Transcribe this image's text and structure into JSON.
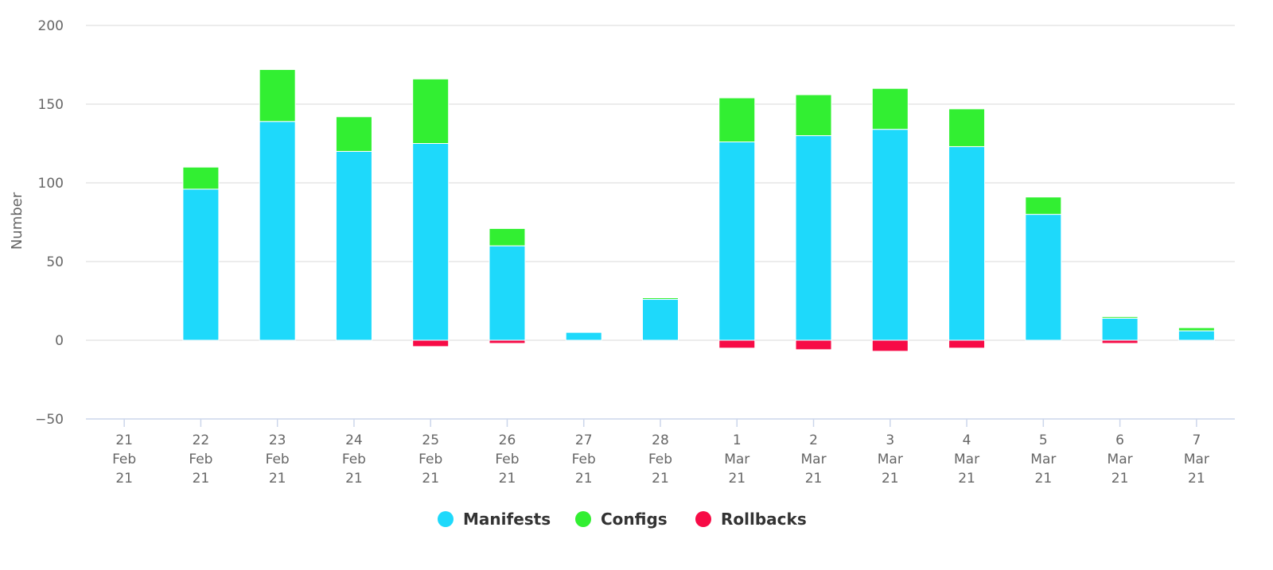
{
  "chart_data": {
    "type": "bar",
    "stacked": true,
    "ylabel": "Number",
    "ylim": [
      -50,
      200
    ],
    "yticks": [
      -50,
      0,
      50,
      100,
      150,
      200
    ],
    "grid": true,
    "legend_position": "bottom-center",
    "categories": [
      [
        "21",
        "Feb",
        "21"
      ],
      [
        "22",
        "Feb",
        "21"
      ],
      [
        "23",
        "Feb",
        "21"
      ],
      [
        "24",
        "Feb",
        "21"
      ],
      [
        "25",
        "Feb",
        "21"
      ],
      [
        "26",
        "Feb",
        "21"
      ],
      [
        "27",
        "Feb",
        "21"
      ],
      [
        "28",
        "Feb",
        "21"
      ],
      [
        "1",
        "Mar",
        "21"
      ],
      [
        "2",
        "Mar",
        "21"
      ],
      [
        "3",
        "Mar",
        "21"
      ],
      [
        "4",
        "Mar",
        "21"
      ],
      [
        "5",
        "Mar",
        "21"
      ],
      [
        "6",
        "Mar",
        "21"
      ],
      [
        "7",
        "Mar",
        "21"
      ]
    ],
    "series": [
      {
        "name": "Manifests",
        "color": "#1ed9fb",
        "values": [
          0,
          96,
          139,
          120,
          125,
          60,
          5,
          26,
          126,
          130,
          134,
          123,
          80,
          14,
          6
        ]
      },
      {
        "name": "Configs",
        "color": "#32ef32",
        "values": [
          0,
          14,
          33,
          22,
          41,
          11,
          0,
          1,
          28,
          26,
          26,
          24,
          11,
          1,
          2
        ]
      },
      {
        "name": "Rollbacks",
        "color": "#f70b46",
        "values": [
          0,
          0,
          0,
          0,
          -4,
          -2,
          0,
          0,
          -5,
          -6,
          -7,
          -5,
          0,
          -2,
          0
        ]
      }
    ]
  }
}
